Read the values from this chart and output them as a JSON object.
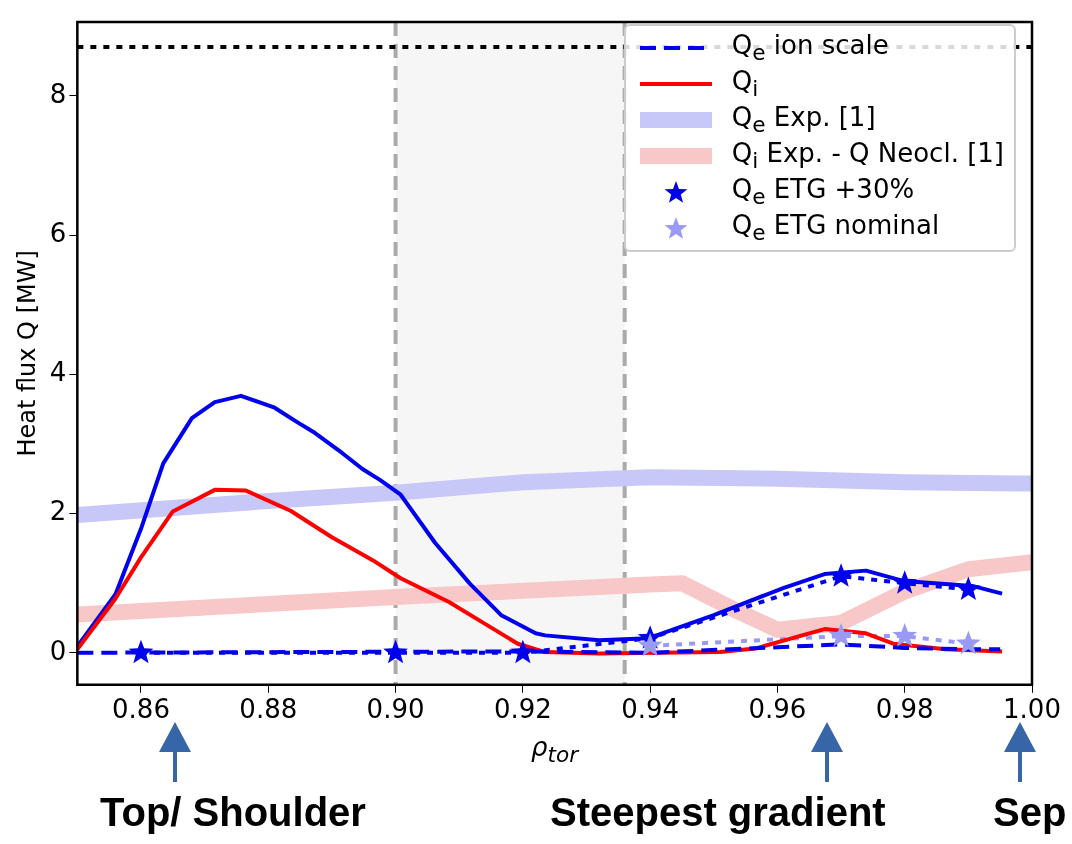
{
  "chart_data": {
    "type": "line",
    "xlabel": "ρ$_{tor}$",
    "ylabel": "Heat flux Q [MW]",
    "xlim": [
      0.85,
      1.0
    ],
    "ylim": [
      -0.46,
      9.06
    ],
    "xticks": [
      {
        "value": 0.86,
        "label": "0.86"
      },
      {
        "value": 0.88,
        "label": "0.88"
      },
      {
        "value": 0.9,
        "label": "0.90"
      },
      {
        "value": 0.92,
        "label": "0.92"
      },
      {
        "value": 0.94,
        "label": "0.94"
      },
      {
        "value": 0.96,
        "label": "0.96"
      },
      {
        "value": 0.98,
        "label": "0.98"
      },
      {
        "value": 1.0,
        "label": "1.00"
      }
    ],
    "yticks": [
      0,
      2,
      4,
      6,
      8
    ],
    "legend": "top right",
    "series": [
      {
        "name": "Q$_{e}$ ion scale",
        "color": "#0000ee",
        "line_style": "dashed",
        "marker": "none",
        "x": [
          0.85,
          0.92,
          0.94,
          0.96,
          0.97,
          0.98,
          0.99,
          0.995
        ],
        "values": [
          0,
          0.02,
          0,
          0.08,
          0.12,
          0.07,
          0.05,
          0.05
        ]
      },
      {
        "name": "Q$_{i}$",
        "color": "#ff0000",
        "line_style": "solid",
        "marker": "none",
        "x": [
          0.85,
          0.856,
          0.86,
          0.865,
          0.8716,
          0.8765,
          0.8835,
          0.89,
          0.8964,
          0.9008,
          0.9084,
          0.9138,
          0.9192,
          0.9235,
          0.932,
          0.951,
          0.9565,
          0.9674,
          0.9739,
          0.9782,
          0.9864,
          0.9953
        ],
        "values": [
          0.05,
          0.78,
          1.37,
          2.03,
          2.34,
          2.33,
          2.04,
          1.66,
          1.33,
          1.07,
          0.73,
          0.43,
          0.13,
          0.01,
          -0.01,
          0.01,
          0.06,
          0.34,
          0.28,
          0.13,
          0.05,
          0.02
        ]
      },
      {
        "name": "Q$_{e}$ Exp. [1]",
        "color": "#c8c8f8",
        "line_style": "solid",
        "marker": "none",
        "x": [
          0.85,
          0.88,
          0.9,
          0.92,
          0.94,
          0.96,
          0.98,
          1.0
        ],
        "values": [
          1.98,
          2.18,
          2.3,
          2.45,
          2.52,
          2.5,
          2.45,
          2.43
        ]
      },
      {
        "name": "Q$_{i}$ Exp. - Q Neocl. [1]",
        "color": "#f8c8c8",
        "line_style": "solid",
        "marker": "none",
        "x": [
          0.85,
          0.9,
          0.94,
          0.945,
          0.953,
          0.96,
          0.97,
          0.98,
          0.99,
          1.0
        ],
        "values": [
          0.55,
          0.8,
          0.98,
          1.0,
          0.63,
          0.33,
          0.43,
          0.88,
          1.2,
          1.3
        ]
      },
      {
        "name": "Q$_{e}$ ETG +30%",
        "color": "#0000ee",
        "line_style": "dotted",
        "marker": "star",
        "x": [
          0.86,
          0.9,
          0.92,
          0.94,
          0.97,
          0.98,
          0.99
        ],
        "values": [
          0,
          0,
          0,
          0.21,
          1.1,
          1.0,
          0.91
        ]
      },
      {
        "name": "Q$_{e}$ ETG nominal",
        "color": "#9a9af4",
        "line_style": "dotted",
        "marker": "star",
        "x": [
          0.94,
          0.97,
          0.98,
          0.99
        ],
        "values": [
          0.1,
          0.24,
          0.24,
          0.13
        ]
      },
      {
        "color": "#0000ee",
        "line_style": "solid",
        "marker": "none",
        "x": [
          0.85,
          0.856,
          0.86,
          0.8635,
          0.868,
          0.8716,
          0.8757,
          0.881,
          0.8846,
          0.8873,
          0.8916,
          0.8948,
          0.8976,
          0.9008,
          0.9062,
          0.9117,
          0.9166,
          0.922,
          0.9235,
          0.932,
          0.9398,
          0.95,
          0.9609,
          0.9674,
          0.9739,
          0.9799,
          0.9906,
          0.9953
        ],
        "values": [
          0.09,
          0.84,
          1.78,
          2.72,
          3.37,
          3.6,
          3.69,
          3.52,
          3.31,
          3.16,
          2.87,
          2.64,
          2.48,
          2.27,
          1.58,
          0.99,
          0.54,
          0.28,
          0.25,
          0.18,
          0.21,
          0.54,
          0.93,
          1.13,
          1.18,
          1.03,
          0.96,
          0.85
        ]
      }
    ],
    "ref_lines": [
      {
        "axis": "y",
        "value": 8.7,
        "color": "#000000",
        "line_style": "dotted"
      }
    ],
    "bands": [
      {
        "axis": "x",
        "from": 0.9,
        "to": 0.936,
        "color": "#f6f6f6"
      }
    ],
    "annotations": [
      "Top/ Shoulder",
      "Steepest gradient",
      "Sep"
    ]
  }
}
